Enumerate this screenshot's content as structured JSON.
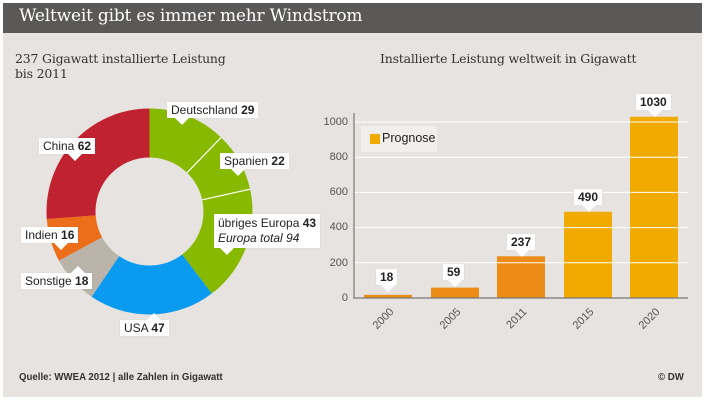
{
  "header": {
    "title": "Weltweit gibt es immer mehr Windstrom"
  },
  "pie_section": {
    "subtitle_line1": "237 Gigawatt installierte Leistung",
    "subtitle_line2": "bis 2011"
  },
  "bar_section": {
    "subtitle": "Installierte Leistung weltweit in Gigawatt",
    "legend_label": "Prognose"
  },
  "footer": {
    "source": "Quelle: WWEA 2012 | alle Zahlen in Gigawatt",
    "copyright": "© DW"
  },
  "colors": {
    "header_bg": "#5a5958",
    "panel_bg": "#e6e3e0",
    "europe_green": "#86b900",
    "usa_blue": "#0a9af0",
    "other_gray": "#b9b3aa",
    "india_orange": "#ec6e1a",
    "china_red": "#c0222f",
    "bar_actual": "#ec8c16",
    "bar_forecast": "#f0aa00"
  },
  "chart_data": [
    {
      "type": "pie",
      "title": "237 Gigawatt installierte Leistung bis 2011",
      "variant": "donut",
      "unit": "Gigawatt",
      "slices": [
        {
          "label": "Deutschland",
          "value": 29,
          "color": "#86b900",
          "group": "Europa"
        },
        {
          "label": "Spanien",
          "value": 22,
          "color": "#86b900",
          "group": "Europa"
        },
        {
          "label": "übriges Europa",
          "value": 43,
          "color": "#86b900",
          "group": "Europa"
        },
        {
          "label": "USA",
          "value": 47,
          "color": "#0a9af0"
        },
        {
          "label": "Sonstige",
          "value": 18,
          "color": "#b9b3aa"
        },
        {
          "label": "Indien",
          "value": 16,
          "color": "#ec6e1a"
        },
        {
          "label": "China",
          "value": 62,
          "color": "#c0222f"
        }
      ],
      "annotations": [
        {
          "text": "Europa total 94"
        }
      ],
      "total": 237
    },
    {
      "type": "bar",
      "title": "Installierte Leistung weltweit in Gigawatt",
      "categories": [
        "2000",
        "2005",
        "2011",
        "2015",
        "2020"
      ],
      "values": [
        18,
        59,
        237,
        490,
        1030
      ],
      "forecast": [
        false,
        false,
        false,
        true,
        true
      ],
      "legend": [
        {
          "label": "Prognose",
          "color": "#f0aa00"
        }
      ],
      "xlabel": "",
      "ylabel": "",
      "ylim": [
        0,
        1000
      ],
      "yticks": [
        0,
        200,
        400,
        600,
        800,
        1000
      ],
      "grid": true,
      "legend_position": "top-left"
    }
  ],
  "pie_labels": {
    "deutschland": {
      "name": "Deutschland",
      "value": "29"
    },
    "spanien": {
      "name": "Spanien",
      "value": "22"
    },
    "europa": {
      "name": "übriges Europa",
      "value": "43",
      "total_line": "Europa total 94"
    },
    "usa": {
      "name": "USA",
      "value": "47"
    },
    "sonstige": {
      "name": "Sonstige",
      "value": "18"
    },
    "indien": {
      "name": "Indien",
      "value": "16"
    },
    "china": {
      "name": "China",
      "value": "62"
    }
  },
  "bar_labels": {
    "yticks": [
      "0",
      "200",
      "400",
      "600",
      "800",
      "1000"
    ],
    "categories": [
      "2000",
      "2005",
      "2011",
      "2015",
      "2020"
    ],
    "values": [
      "18",
      "59",
      "237",
      "490",
      "1030"
    ]
  }
}
